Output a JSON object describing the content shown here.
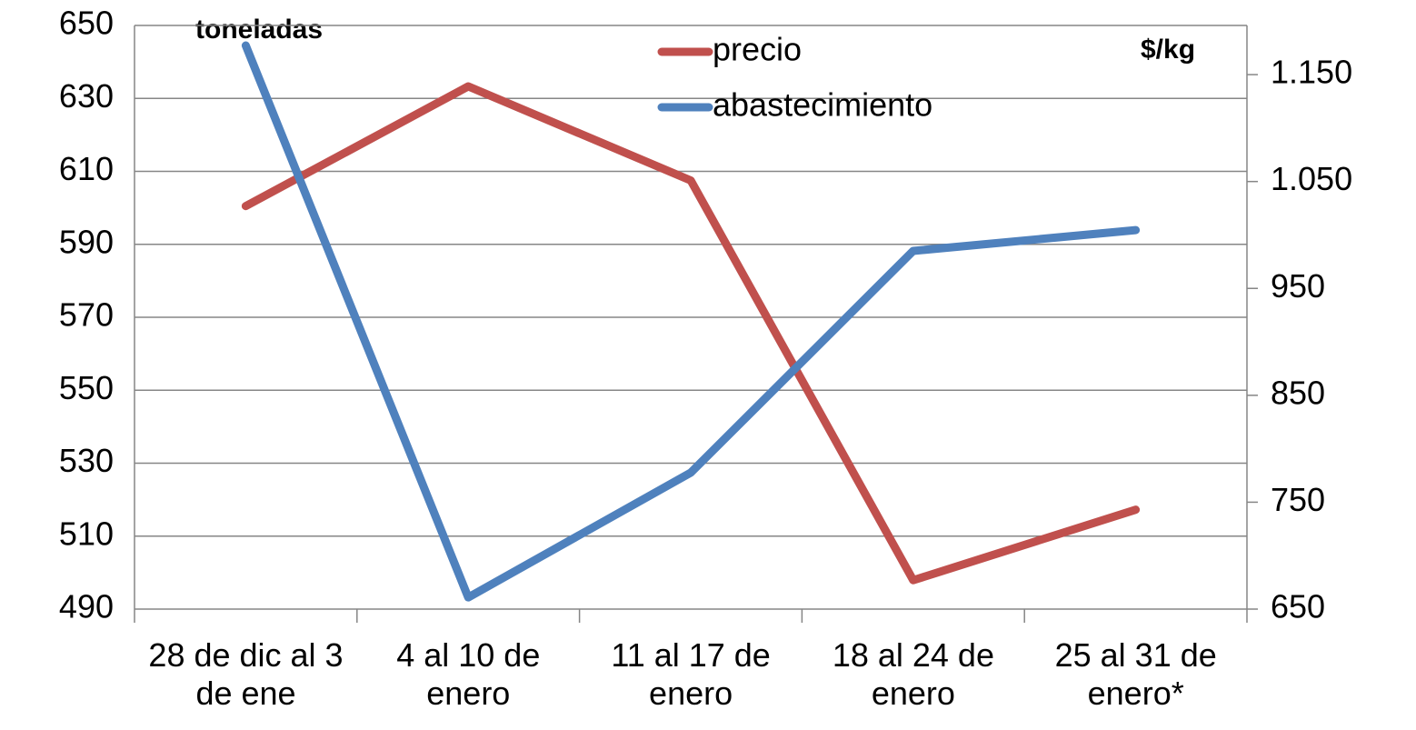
{
  "chart_data": {
    "type": "line",
    "categories": [
      "28 de dic al 3 de ene",
      "4 al 10 de enero",
      "11 al 17 de enero",
      "18 al 24 de enero",
      "25 al 31 de enero*"
    ],
    "y_label": "toneladas",
    "y2_label": "$/kg",
    "series": [
      {
        "name": "precio",
        "color": "#c0504d",
        "axis": "y2",
        "values": [
          1027,
          1139,
          1051,
          677,
          743
        ]
      },
      {
        "name": "abastecimiento",
        "color": "#4f81bd",
        "values": [
          644.5,
          493.2,
          527.4,
          588.2,
          593.9
        ]
      }
    ],
    "ylim": [
      490,
      650
    ],
    "yticks": [
      490,
      510,
      530,
      550,
      570,
      590,
      610,
      630,
      650
    ],
    "y2lim": [
      650,
      1196
    ],
    "y2ticks": [
      650,
      750,
      850,
      950,
      {
        "value": 1050,
        "label": "1.050"
      },
      {
        "value": 1150,
        "label": "1.150"
      }
    ],
    "grid": true
  }
}
